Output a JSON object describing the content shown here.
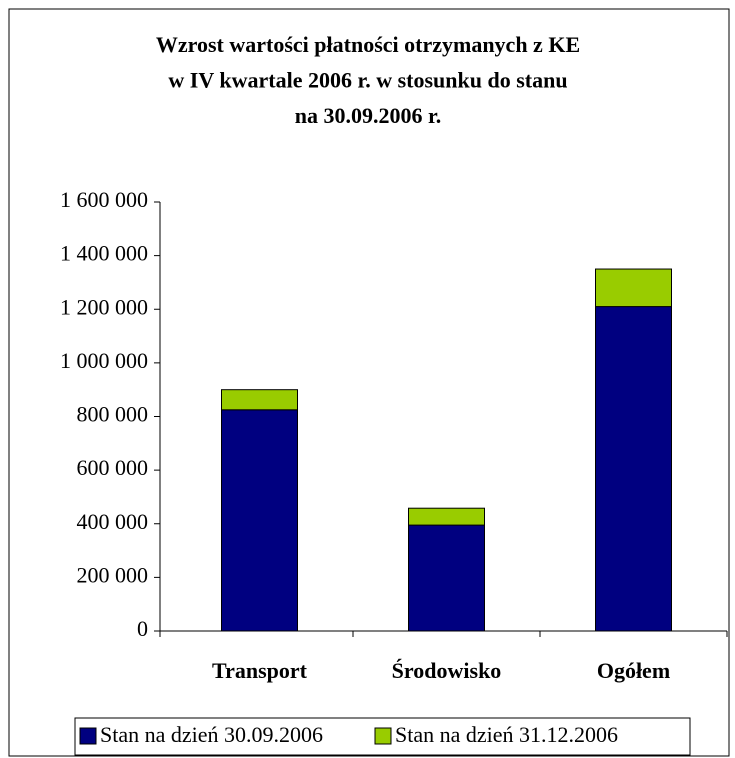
{
  "chart_data": {
    "type": "stacked_bar",
    "title": [
      "Wzrost wartości płatności otrzymanych z KE",
      "w IV kwartale 2006 r. w stosunku do stanu",
      "na 30.09.2006 r."
    ],
    "categories": [
      "Transport",
      "Środowisko",
      "Ogółem"
    ],
    "series": [
      {
        "name": "Stan na dzień 30.09.2006",
        "color": "#000080",
        "values": [
          825000,
          395000,
          1210000
        ]
      },
      {
        "name": "Stan na dzień 31.12.2006",
        "color": "#99cc00",
        "values": [
          75000,
          63000,
          140000
        ]
      }
    ],
    "ylim": [
      0,
      1600000
    ],
    "yticks": [
      0,
      {
        "value": 200000,
        "label": "200 000"
      },
      {
        "value": 400000,
        "label": "400 000"
      },
      {
        "value": 600000,
        "label": "600 000"
      },
      {
        "value": 800000,
        "label": "800 000"
      },
      {
        "value": 1000000,
        "label": "1 000 000"
      },
      {
        "value": 1200000,
        "label": "1 200 000"
      },
      {
        "value": 1400000,
        "label": "1 400 000"
      },
      {
        "value": 1600000,
        "label": "1 600 000"
      }
    ],
    "legend": "bottom"
  }
}
